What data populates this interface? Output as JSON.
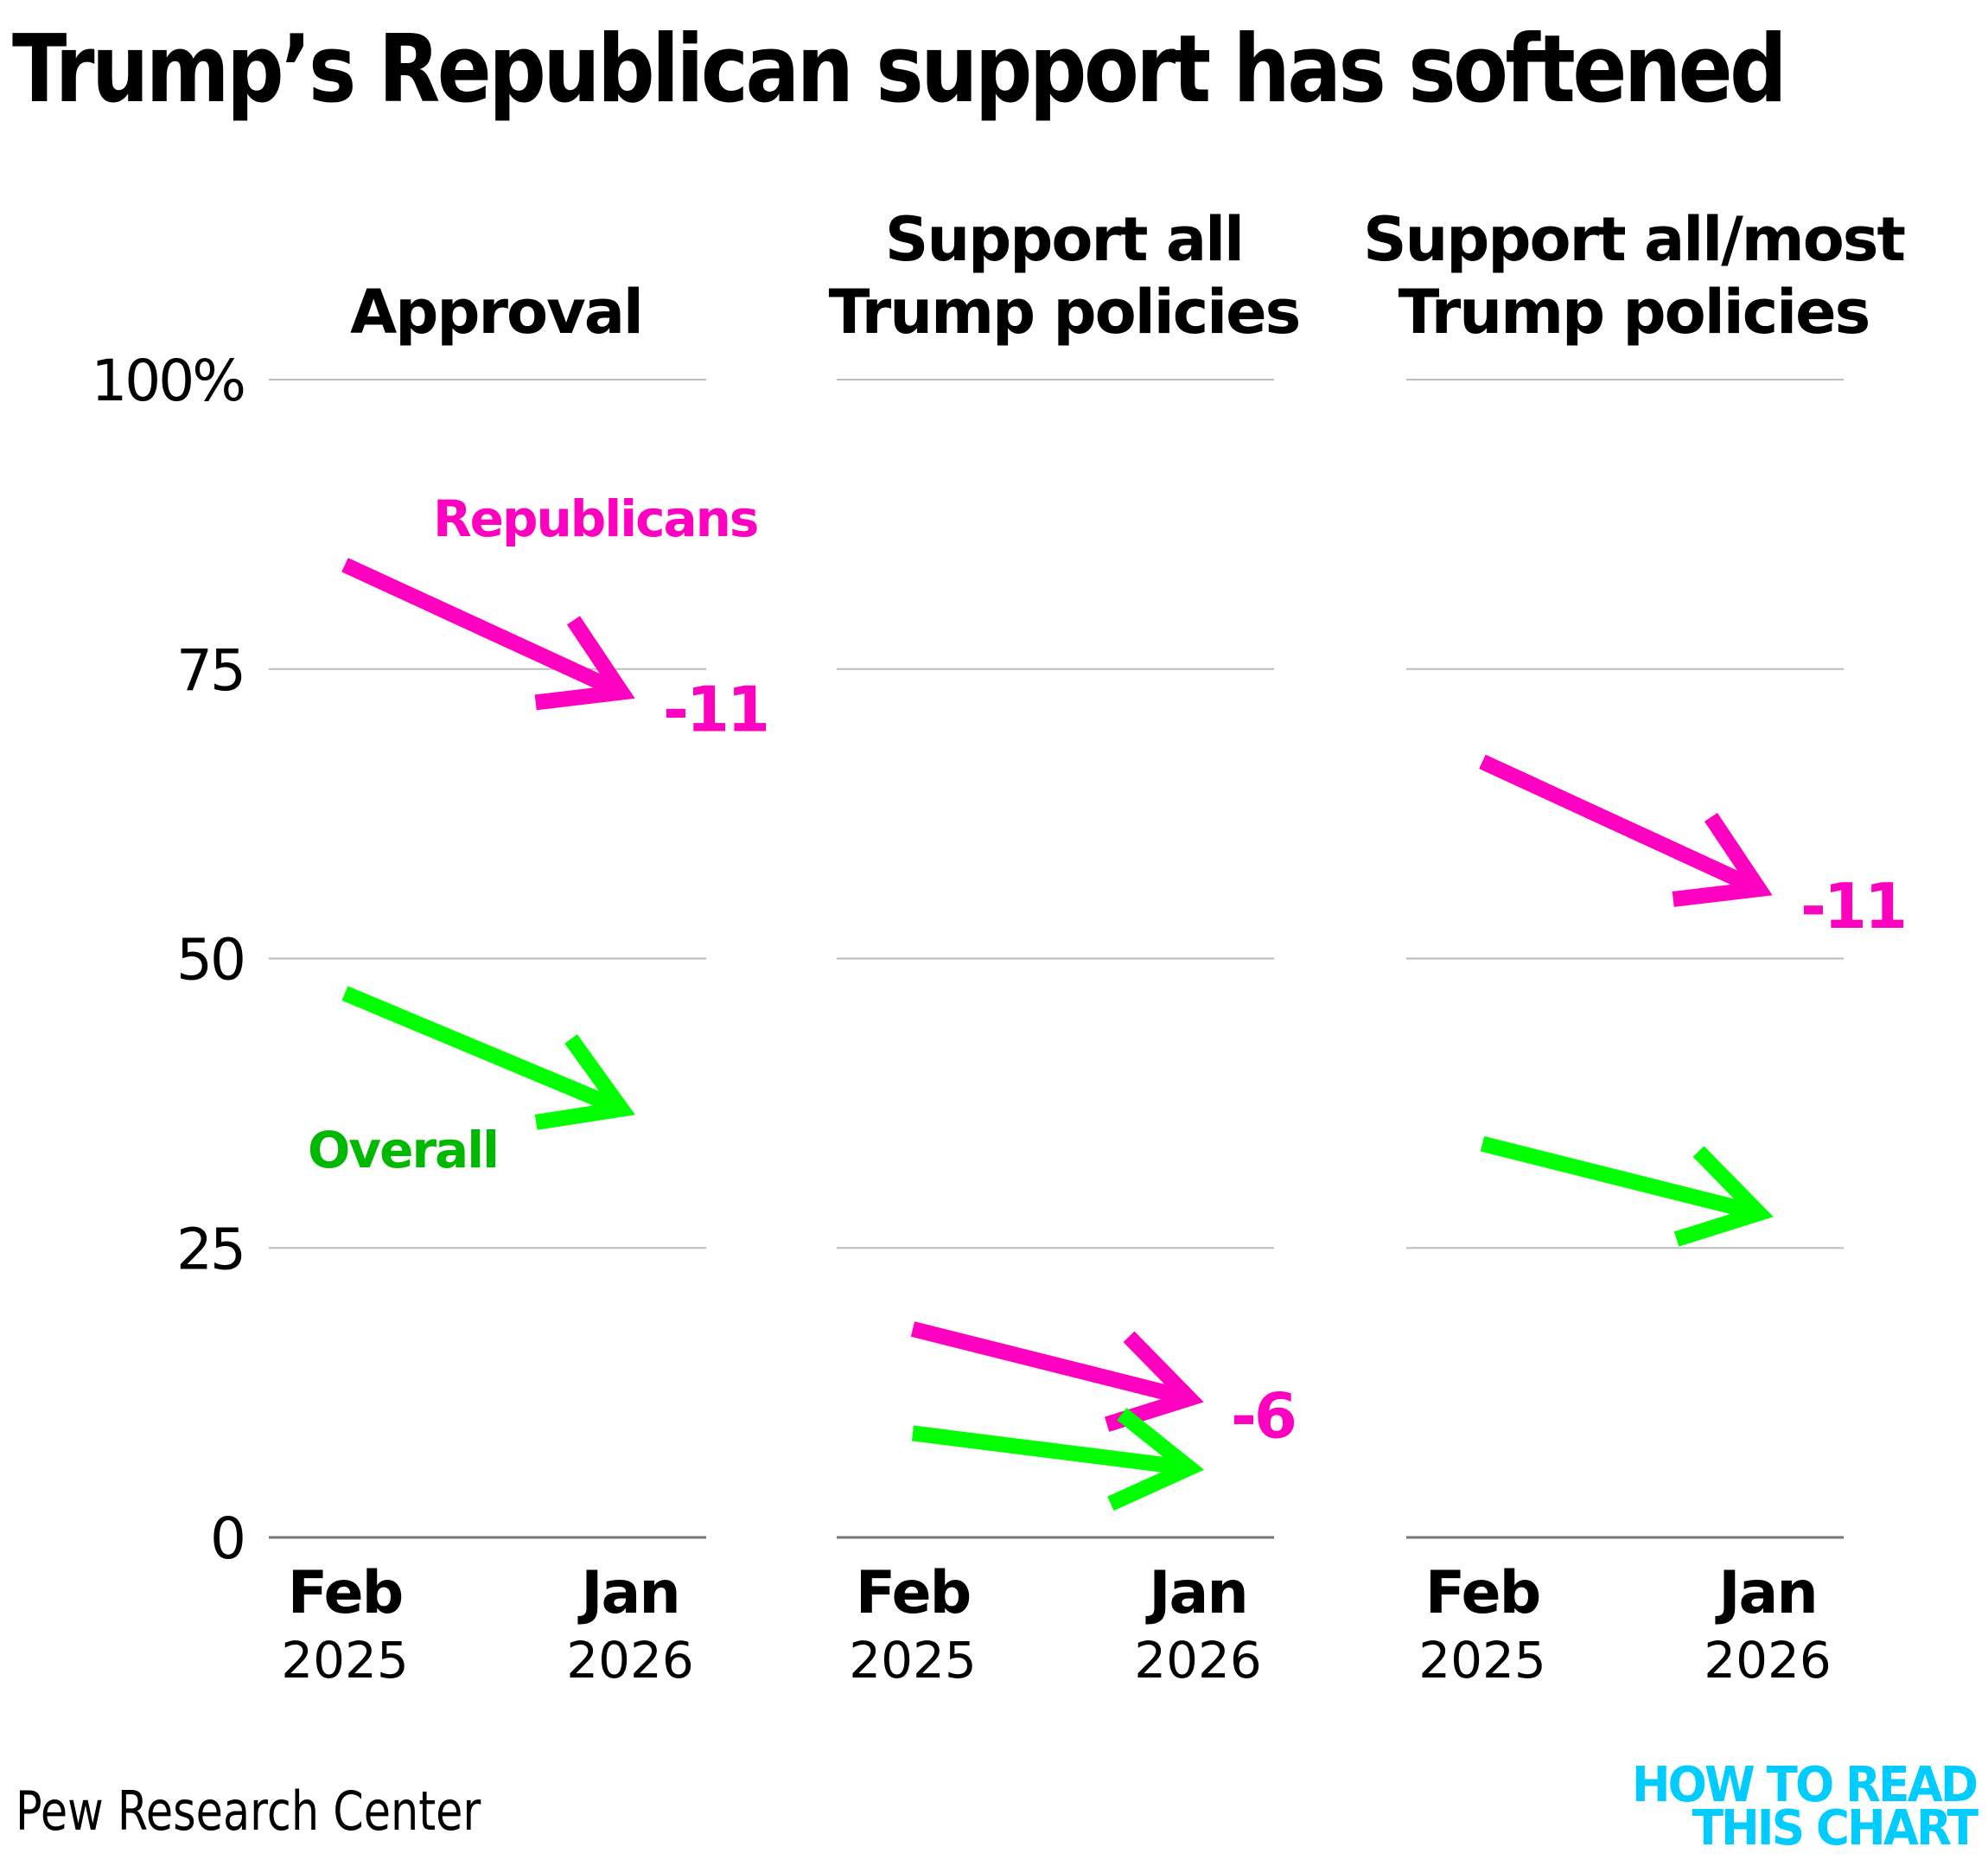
{
  "title": "Trump’s Republican support has softened",
  "source": "Pew Research Center",
  "logo": {
    "line1": "HOW TO READ",
    "line2": "THIS CHART",
    "color": "#00CCFF"
  },
  "colors": {
    "republicans": "#FF00C0",
    "overall_line": "#00FF00",
    "overall_label": "#00B800",
    "grid": "#BBBBBB",
    "axis": "#777777"
  },
  "chart_data": {
    "type": "line",
    "layout": "small-multiples (3 panels, arrows from first to second point)",
    "ylim": [
      0,
      100
    ],
    "yticks": [
      0,
      25,
      50,
      75,
      100
    ],
    "ytick_labels": [
      "0",
      "25",
      "50",
      "75",
      "100%"
    ],
    "grid": true,
    "x": [
      {
        "month": "Feb",
        "year": "2025"
      },
      {
        "month": "Jan",
        "year": "2026"
      }
    ],
    "legend": [
      {
        "name": "Republicans",
        "color": "#FF00C0",
        "placement": "panel-1 above Republican arrow"
      },
      {
        "name": "Overall",
        "color": "#00FF00",
        "placement": "panel-1 below Overall arrow"
      }
    ],
    "panels": [
      {
        "title": [
          "Approval"
        ],
        "series": [
          {
            "name": "Republicans",
            "values": [
              84,
              73
            ],
            "change_label": "-11"
          },
          {
            "name": "Overall",
            "values": [
              47,
              37
            ],
            "change_label": ""
          }
        ]
      },
      {
        "title": [
          "Support all",
          "Trump policies"
        ],
        "series": [
          {
            "name": "Republicans",
            "values": [
              18,
              12
            ],
            "change_label": "-6"
          },
          {
            "name": "Overall",
            "values": [
              9,
              6
            ],
            "change_label": ""
          }
        ]
      },
      {
        "title": [
          "Support all/most",
          "Trump policies"
        ],
        "series": [
          {
            "name": "Republicans",
            "values": [
              67,
              56
            ],
            "change_label": "-11"
          },
          {
            "name": "Overall",
            "values": [
              34,
              28
            ],
            "change_label": ""
          }
        ]
      }
    ]
  }
}
